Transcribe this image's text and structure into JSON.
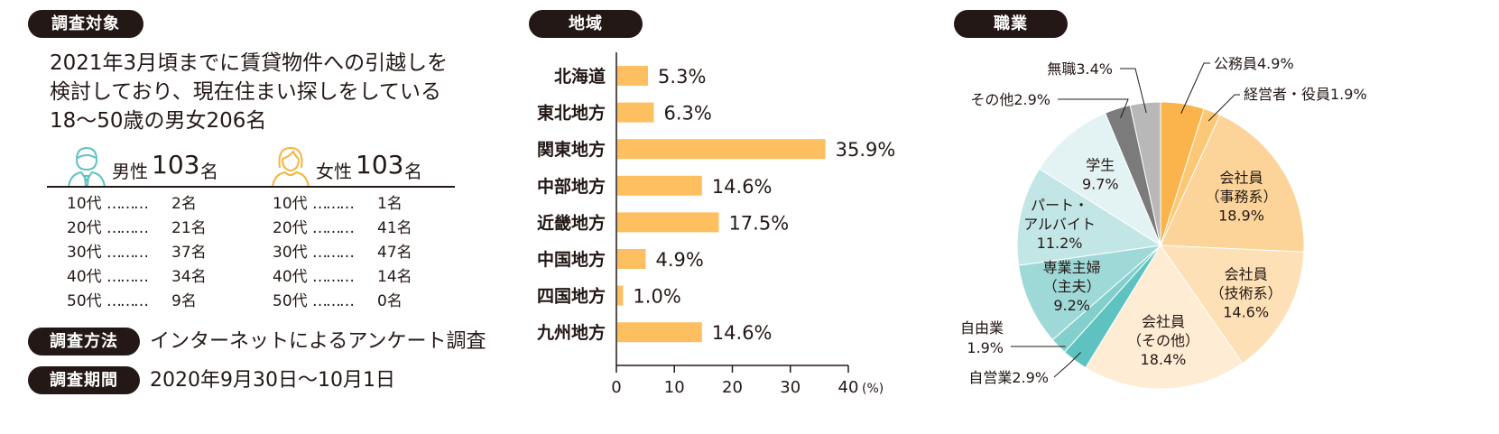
{
  "survey": {
    "target_label": "調査対象",
    "target_lines": [
      "2021年3月頃までに賃貸物件への引越しを",
      "検討しており、現在住まい探しをしている",
      "18～50歳の男女206名"
    ],
    "male": {
      "label": "男性",
      "count": "103",
      "unit": "名",
      "rows": [
        {
          "age": "10代",
          "dots": "………",
          "n": "2名"
        },
        {
          "age": "20代",
          "dots": "………",
          "n": "21名"
        },
        {
          "age": "30代",
          "dots": "………",
          "n": "37名"
        },
        {
          "age": "40代",
          "dots": "………",
          "n": "34名"
        },
        {
          "age": "50代",
          "dots": "………",
          "n": "9名"
        }
      ]
    },
    "female": {
      "label": "女性",
      "count": "103",
      "unit": "名",
      "rows": [
        {
          "age": "10代",
          "dots": "………",
          "n": "1名"
        },
        {
          "age": "20代",
          "dots": "………",
          "n": "41名"
        },
        {
          "age": "30代",
          "dots": "………",
          "n": "47名"
        },
        {
          "age": "40代",
          "dots": "………",
          "n": "14名"
        },
        {
          "age": "50代",
          "dots": "………",
          "n": "0名"
        }
      ]
    },
    "method_label": "調査方法",
    "method_value": "インターネットによるアンケート調査",
    "period_label": "調査期間",
    "period_value": "2020年9月30日～10月1日"
  },
  "chart_data": [
    {
      "type": "bar",
      "orientation": "horizontal",
      "title": "地域",
      "categories": [
        "北海道",
        "東北地方",
        "関東地方",
        "中部地方",
        "近畿地方",
        "中国地方",
        "四国地方",
        "九州地方"
      ],
      "values": [
        5.3,
        6.3,
        35.9,
        14.6,
        17.5,
        4.9,
        1.0,
        14.6
      ],
      "data_labels": [
        "5.3%",
        "6.3%",
        "35.9%",
        "14.6%",
        "17.5%",
        "4.9%",
        "1.0%",
        "14.6%"
      ],
      "xlim": [
        0,
        40
      ],
      "xticks": [
        "0",
        "10",
        "20",
        "30",
        "40"
      ],
      "x_unit": "(%)",
      "bar_color": "#fdbf5f"
    },
    {
      "type": "pie",
      "title": "職業",
      "slices": [
        {
          "label": "公務員4.9%",
          "value": 4.9,
          "color": "#fbb44b"
        },
        {
          "label": "経営者・役員1.9%",
          "value": 1.9,
          "color": "#fcc875"
        },
        {
          "label": "会社員（事務系）18.9%",
          "value": 18.9,
          "color": "#fcd49a"
        },
        {
          "label": "会社員（技術系）14.6%",
          "value": 14.6,
          "color": "#fde0b6"
        },
        {
          "label": "会社員（その他）18.4%",
          "value": 18.4,
          "color": "#feecd4"
        },
        {
          "label": "自営業2.9%",
          "value": 2.9,
          "color": "#5ec3c0"
        },
        {
          "label": "自由業1.9%",
          "value": 1.9,
          "color": "#82cfcc"
        },
        {
          "label": "専業主婦（主夫）9.2%",
          "value": 9.2,
          "color": "#9fd9d7"
        },
        {
          "label": "パート・アルバイト11.2%",
          "value": 11.2,
          "color": "#c2e6e5"
        },
        {
          "label": "学生9.7%",
          "value": 9.7,
          "color": "#e3f3f3"
        },
        {
          "label": "その他2.9%",
          "value": 2.9,
          "color": "#7b7b7c"
        },
        {
          "label": "無職3.4%",
          "value": 3.4,
          "color": "#b8b8b9"
        }
      ],
      "inside_labels": [
        {
          "lines": [
            "会社員",
            "（事務系）",
            "18.9%"
          ]
        },
        {
          "lines": [
            "会社員",
            "（技術系）",
            "14.6%"
          ]
        },
        {
          "lines": [
            "会社員",
            "（その他）",
            "18.4%"
          ]
        },
        {
          "lines": [
            "専業主婦",
            "（主夫）",
            "9.2%"
          ]
        },
        {
          "lines": [
            "パート・",
            "アルバイト",
            "11.2%"
          ]
        },
        {
          "lines": [
            "学生",
            "9.7%"
          ]
        }
      ],
      "outside_labels": [
        {
          "lines": [
            "公務員4.9%"
          ]
        },
        {
          "lines": [
            "経営者・役員1.9%"
          ]
        },
        {
          "lines": [
            "無職3.4%"
          ]
        },
        {
          "lines": [
            "その他2.9%"
          ]
        },
        {
          "lines": [
            "自由業",
            "1.9%"
          ]
        },
        {
          "lines": [
            "自営業2.9%"
          ]
        }
      ]
    }
  ]
}
